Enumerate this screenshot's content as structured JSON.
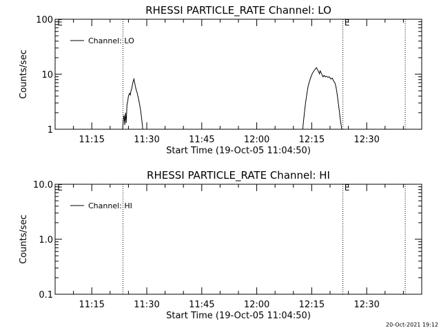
{
  "footer_timestamp": "20-Oct-2021 19:12",
  "chart_data": [
    {
      "type": "line",
      "title": "RHESSI PARTICLE_RATE Channel: LO",
      "xlabel": "Start Time (19-Oct-05 11:04:50)",
      "ylabel": "Counts/sec",
      "yscale": "log",
      "ylim": [
        1,
        100
      ],
      "yticks": [
        {
          "v": 1,
          "label": "1"
        },
        {
          "v": 10,
          "label": "10"
        },
        {
          "v": 100,
          "label": "100"
        }
      ],
      "xlim_minutes": [
        65,
        165
      ],
      "xticks": [
        {
          "m": 75,
          "label": "11:15"
        },
        {
          "m": 90,
          "label": "11:30"
        },
        {
          "m": 105,
          "label": "11:45"
        },
        {
          "m": 120,
          "label": "12:00"
        },
        {
          "m": 135,
          "label": "12:15"
        },
        {
          "m": 150,
          "label": "12:30"
        }
      ],
      "vlines_minutes": [
        83.5,
        143.5,
        160.5
      ],
      "markers": [
        {
          "m": 65.6,
          "label": "E"
        },
        {
          "m": 143.9,
          "label": "E"
        }
      ],
      "legend": {
        "position": "top-left",
        "entries": [
          "Channel: LO"
        ]
      },
      "series": [
        {
          "name": "Channel: LO",
          "segments": [
            [
              [
                83.3,
                0.8
              ],
              [
                83.6,
                1.5
              ],
              [
                83.8,
                1.8
              ],
              [
                84.0,
                1.2
              ],
              [
                84.2,
                2.0
              ],
              [
                84.4,
                1.3
              ],
              [
                84.6,
                2.8
              ],
              [
                84.8,
                3.2
              ],
              [
                85.0,
                4.0
              ],
              [
                85.3,
                4.5
              ],
              [
                85.5,
                4.2
              ],
              [
                85.7,
                5.0
              ],
              [
                85.9,
                5.5
              ],
              [
                86.1,
                6.5
              ],
              [
                86.3,
                7.5
              ],
              [
                86.5,
                8.2
              ],
              [
                86.7,
                7.0
              ],
              [
                86.9,
                6.0
              ],
              [
                87.1,
                5.2
              ],
              [
                87.3,
                4.8
              ],
              [
                87.6,
                4.0
              ],
              [
                87.9,
                3.2
              ],
              [
                88.2,
                2.5
              ],
              [
                88.5,
                1.8
              ],
              [
                88.8,
                1.2
              ],
              [
                89.0,
                0.8
              ]
            ],
            [
              [
                132.4,
                0.8
              ],
              [
                132.7,
                1.3
              ],
              [
                133.0,
                2.0
              ],
              [
                133.3,
                3.0
              ],
              [
                133.7,
                4.5
              ],
              [
                134.0,
                6.0
              ],
              [
                134.4,
                7.5
              ],
              [
                134.8,
                9.0
              ],
              [
                135.2,
                10.5
              ],
              [
                135.6,
                11.5
              ],
              [
                136.0,
                12.5
              ],
              [
                136.3,
                13.2
              ],
              [
                136.6,
                12.0
              ],
              [
                136.9,
                11.0
              ],
              [
                137.1,
                10.2
              ],
              [
                137.3,
                11.5
              ],
              [
                137.6,
                10.5
              ],
              [
                137.9,
                9.5
              ],
              [
                138.1,
                9.0
              ],
              [
                138.4,
                9.5
              ],
              [
                138.7,
                9.0
              ],
              [
                139.0,
                9.2
              ],
              [
                139.4,
                8.8
              ],
              [
                139.8,
                9.0
              ],
              [
                140.2,
                8.2
              ],
              [
                140.6,
                8.5
              ],
              [
                141.0,
                7.5
              ],
              [
                141.3,
                7.0
              ],
              [
                141.6,
                6.0
              ],
              [
                141.9,
                4.5
              ],
              [
                142.2,
                3.2
              ],
              [
                142.5,
                2.2
              ],
              [
                142.8,
                1.5
              ],
              [
                143.1,
                1.1
              ],
              [
                143.3,
                0.8
              ]
            ]
          ]
        }
      ]
    },
    {
      "type": "line",
      "title": "RHESSI PARTICLE_RATE Channel: HI",
      "xlabel": "Start Time (19-Oct-05 11:04:50)",
      "ylabel": "Counts/sec",
      "yscale": "log",
      "ylim": [
        0.1,
        10
      ],
      "yticks": [
        {
          "v": 0.1,
          "label": "0.1"
        },
        {
          "v": 1,
          "label": "1.0"
        },
        {
          "v": 10,
          "label": "10.0"
        }
      ],
      "xlim_minutes": [
        65,
        165
      ],
      "xticks": [
        {
          "m": 75,
          "label": "11:15"
        },
        {
          "m": 90,
          "label": "11:30"
        },
        {
          "m": 105,
          "label": "11:45"
        },
        {
          "m": 120,
          "label": "12:00"
        },
        {
          "m": 135,
          "label": "12:15"
        },
        {
          "m": 150,
          "label": "12:30"
        }
      ],
      "vlines_minutes": [
        83.5,
        143.5,
        160.5
      ],
      "markers": [
        {
          "m": 65.6,
          "label": "E"
        },
        {
          "m": 143.9,
          "label": "E"
        }
      ],
      "legend": {
        "position": "top-left",
        "entries": [
          "Channel: HI"
        ]
      },
      "series": [
        {
          "name": "Channel: HI",
          "segments": []
        }
      ]
    }
  ]
}
